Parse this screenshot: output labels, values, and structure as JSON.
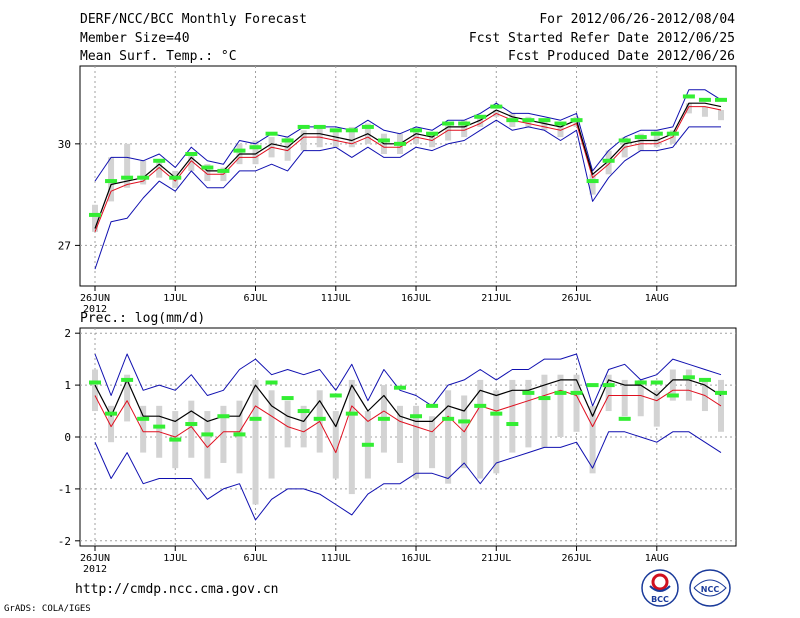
{
  "header": {
    "title": "DERF/NCC/BCC Monthly Forecast",
    "member_size": "Member Size=40",
    "variable": "Mean Surf. Temp.: °C",
    "period": "For 2012/06/26-2012/08/04",
    "fcst_started": "Fcst Started Refer Date 2012/06/25",
    "fcst_produced": "Fcst Produced Date 2012/06/26"
  },
  "footer": {
    "url": "http://cmdp.ncc.cma.gov.cn",
    "grads": "GrADS: COLA/IGES",
    "logo_left_text": "BCC",
    "logo_right_text": "NCC"
  },
  "colors": {
    "grid": "#a0a0a0",
    "ensemble_bar": "#d3d3d3",
    "max_min_line": "#1010b0",
    "mean_line": "#000000",
    "median_line": "#e01020",
    "green_marker": "#33ee33"
  },
  "chart_data": [
    {
      "type": "line",
      "title": "Mean Surf. Temp.: °C",
      "x": [
        1,
        2,
        3,
        4,
        5,
        6,
        7,
        8,
        9,
        10,
        11,
        12,
        13,
        14,
        15,
        16,
        17,
        18,
        19,
        20,
        21,
        22,
        23,
        24,
        25,
        26,
        27,
        28,
        29,
        30,
        31,
        32,
        33,
        34,
        35,
        36,
        37,
        38,
        39,
        40
      ],
      "xtick_positions": [
        1,
        6,
        11,
        16,
        21,
        26,
        31,
        36
      ],
      "xtick_labels": [
        "26JUN",
        "1JUL",
        "6JUL",
        "11JUL",
        "16JUL",
        "21JUL",
        "26JUL",
        "1AUG"
      ],
      "year_label": "2012",
      "ylim": [
        25.8,
        32.3
      ],
      "yticks": [
        27,
        30
      ],
      "ytick_labels": [
        "27",
        "30"
      ],
      "grid": true,
      "series": [
        {
          "name": "max",
          "values": [
            28.9,
            29.6,
            29.6,
            29.5,
            29.7,
            29.3,
            29.9,
            29.5,
            29.4,
            30.1,
            30.0,
            30.3,
            30.2,
            30.5,
            30.5,
            30.5,
            30.4,
            30.7,
            30.4,
            30.3,
            30.5,
            30.4,
            30.7,
            30.7,
            30.9,
            31.2,
            30.9,
            30.9,
            30.8,
            30.7,
            30.9,
            29.2,
            29.8,
            30.2,
            30.4,
            30.4,
            30.5,
            31.6,
            31.6,
            31.3
          ]
        },
        {
          "name": "min",
          "values": [
            26.3,
            27.7,
            27.8,
            28.4,
            28.9,
            28.6,
            29.2,
            28.7,
            28.7,
            29.2,
            29.2,
            29.4,
            29.2,
            29.8,
            29.8,
            29.9,
            29.6,
            29.9,
            29.6,
            29.6,
            29.9,
            29.8,
            30.0,
            30.1,
            30.4,
            30.7,
            30.4,
            30.5,
            30.4,
            30.1,
            30.4,
            28.3,
            29.0,
            29.5,
            29.8,
            29.8,
            29.9,
            30.5,
            30.5,
            30.5
          ]
        },
        {
          "name": "ens_top",
          "values": [
            28.2,
            29.6,
            30.0,
            29.5,
            29.5,
            29.2,
            29.7,
            29.4,
            29.3,
            30.0,
            30.1,
            30.2,
            30.2,
            30.4,
            30.5,
            30.4,
            30.5,
            30.6,
            30.3,
            30.3,
            30.4,
            30.3,
            30.6,
            30.7,
            30.8,
            31.0,
            30.9,
            30.8,
            30.7,
            30.6,
            30.8,
            29.1,
            29.8,
            30.2,
            30.3,
            30.4,
            30.4,
            31.2,
            31.1,
            31.0
          ]
        },
        {
          "name": "ens_bottom",
          "values": [
            27.4,
            28.3,
            28.7,
            28.8,
            29.0,
            28.7,
            29.2,
            28.9,
            28.9,
            29.4,
            29.4,
            29.6,
            29.5,
            29.8,
            29.9,
            29.9,
            29.9,
            30.0,
            29.7,
            29.7,
            30.0,
            29.9,
            30.1,
            30.2,
            30.5,
            30.8,
            30.5,
            30.5,
            30.4,
            30.2,
            30.5,
            28.5,
            29.1,
            29.6,
            29.8,
            29.9,
            30.0,
            30.9,
            30.8,
            30.7
          ]
        },
        {
          "name": "mean",
          "values": [
            27.5,
            28.8,
            28.9,
            29.0,
            29.4,
            29.0,
            29.6,
            29.2,
            29.2,
            29.7,
            29.7,
            30.0,
            29.9,
            30.3,
            30.3,
            30.2,
            30.1,
            30.3,
            30.0,
            30.0,
            30.3,
            30.2,
            30.5,
            30.5,
            30.7,
            31.0,
            30.8,
            30.7,
            30.6,
            30.5,
            30.7,
            29.1,
            29.5,
            30.0,
            30.1,
            30.1,
            30.3,
            31.2,
            31.2,
            31.1
          ]
        },
        {
          "name": "median",
          "values": [
            27.4,
            28.6,
            28.8,
            28.9,
            29.3,
            28.9,
            29.5,
            29.1,
            29.1,
            29.6,
            29.6,
            29.9,
            29.8,
            30.2,
            30.2,
            30.1,
            30.0,
            30.2,
            29.9,
            29.9,
            30.2,
            30.1,
            30.4,
            30.4,
            30.6,
            30.9,
            30.7,
            30.6,
            30.5,
            30.4,
            30.6,
            29.0,
            29.4,
            29.9,
            30.0,
            30.0,
            30.2,
            31.1,
            31.1,
            31.0
          ]
        },
        {
          "name": "green",
          "values": [
            27.9,
            28.9,
            29.0,
            29.0,
            29.5,
            29.0,
            29.7,
            29.3,
            29.2,
            29.8,
            29.9,
            30.3,
            30.1,
            30.5,
            30.5,
            30.4,
            30.4,
            30.5,
            30.1,
            30.0,
            30.4,
            30.3,
            30.6,
            30.6,
            30.8,
            31.1,
            30.7,
            30.7,
            30.7,
            30.6,
            30.7,
            28.9,
            29.5,
            30.1,
            30.2,
            30.3,
            30.3,
            31.4,
            31.3,
            31.3
          ]
        }
      ]
    },
    {
      "type": "line",
      "title": "Prec.: log(mm/d)",
      "x": [
        1,
        2,
        3,
        4,
        5,
        6,
        7,
        8,
        9,
        10,
        11,
        12,
        13,
        14,
        15,
        16,
        17,
        18,
        19,
        20,
        21,
        22,
        23,
        24,
        25,
        26,
        27,
        28,
        29,
        30,
        31,
        32,
        33,
        34,
        35,
        36,
        37,
        38,
        39,
        40
      ],
      "xtick_positions": [
        1,
        6,
        11,
        16,
        21,
        26,
        31,
        36
      ],
      "xtick_labels": [
        "26JUN",
        "1JUL",
        "6JUL",
        "11JUL",
        "16JUL",
        "21JUL",
        "26JUL",
        "1AUG"
      ],
      "year_label": "2012",
      "ylim": [
        -2.1,
        2.1
      ],
      "yticks": [
        -2,
        -1,
        0,
        1,
        2
      ],
      "ytick_labels": [
        "-2",
        "-1",
        "0",
        "1",
        "2"
      ],
      "grid": true,
      "series": [
        {
          "name": "max",
          "values": [
            1.6,
            0.8,
            1.6,
            0.9,
            1.0,
            0.9,
            1.2,
            0.8,
            0.9,
            1.3,
            1.5,
            1.2,
            1.3,
            1.2,
            1.3,
            0.9,
            1.4,
            0.7,
            1.3,
            0.9,
            0.8,
            0.6,
            1.0,
            1.1,
            1.3,
            1.1,
            1.3,
            1.3,
            1.5,
            1.5,
            1.6,
            0.6,
            1.3,
            1.4,
            1.1,
            1.2,
            1.5,
            1.4,
            1.3,
            1.2
          ]
        },
        {
          "name": "min",
          "values": [
            -0.1,
            -0.8,
            -0.3,
            -0.9,
            -0.8,
            -0.8,
            -0.8,
            -1.2,
            -1.0,
            -0.9,
            -1.6,
            -1.2,
            -1.0,
            -1.0,
            -1.1,
            -1.3,
            -1.5,
            -1.1,
            -0.9,
            -0.9,
            -0.7,
            -0.7,
            -0.8,
            -0.5,
            -0.9,
            -0.5,
            -0.4,
            -0.3,
            -0.2,
            -0.2,
            -0.1,
            -0.6,
            0.1,
            0.1,
            0.0,
            -0.1,
            0.1,
            0.1,
            -0.1,
            -0.3
          ]
        },
        {
          "name": "ens_top",
          "values": [
            1.3,
            0.6,
            1.2,
            0.6,
            0.6,
            0.5,
            0.7,
            0.5,
            0.6,
            0.7,
            1.1,
            0.9,
            0.7,
            0.6,
            0.9,
            0.5,
            1.1,
            0.5,
            1.0,
            0.6,
            0.6,
            0.4,
            0.9,
            0.8,
            1.1,
            0.9,
            1.1,
            1.1,
            1.2,
            1.2,
            1.2,
            0.6,
            1.2,
            1.1,
            1.1,
            0.9,
            1.3,
            1.3,
            1.1,
            1.1
          ]
        },
        {
          "name": "ens_bottom",
          "values": [
            0.5,
            -0.1,
            0.3,
            -0.3,
            -0.4,
            -0.6,
            -0.4,
            -0.8,
            -0.5,
            -0.7,
            -1.3,
            -0.8,
            -0.2,
            -0.2,
            -0.3,
            -0.8,
            -1.1,
            -0.8,
            -0.3,
            -0.5,
            -0.8,
            -0.6,
            -0.9,
            -0.6,
            -0.8,
            -0.7,
            -0.3,
            -0.2,
            -0.2,
            0.0,
            0.1,
            -0.7,
            0.5,
            0.4,
            0.4,
            0.2,
            0.7,
            0.7,
            0.5,
            0.1
          ]
        },
        {
          "name": "mean",
          "values": [
            1.0,
            0.4,
            1.1,
            0.4,
            0.4,
            0.3,
            0.5,
            0.3,
            0.4,
            0.4,
            1.0,
            0.6,
            0.4,
            0.3,
            0.7,
            0.2,
            1.0,
            0.5,
            0.8,
            0.4,
            0.3,
            0.3,
            0.6,
            0.5,
            0.9,
            0.8,
            0.9,
            0.9,
            1.0,
            1.1,
            1.1,
            0.4,
            1.1,
            1.0,
            1.0,
            0.8,
            1.1,
            1.1,
            1.0,
            0.8
          ]
        },
        {
          "name": "median",
          "values": [
            0.8,
            0.2,
            0.7,
            0.1,
            0.1,
            0.0,
            0.2,
            -0.2,
            0.1,
            0.1,
            0.6,
            0.4,
            0.2,
            0.1,
            0.3,
            -0.3,
            0.6,
            0.3,
            0.5,
            0.3,
            0.2,
            0.1,
            0.4,
            0.1,
            0.6,
            0.5,
            0.6,
            0.7,
            0.8,
            0.9,
            0.8,
            0.2,
            0.8,
            0.8,
            0.8,
            0.7,
            0.9,
            0.9,
            0.8,
            0.6
          ]
        },
        {
          "name": "green",
          "values": [
            1.05,
            0.45,
            1.1,
            0.35,
            0.2,
            -0.05,
            0.25,
            0.05,
            0.4,
            0.05,
            0.35,
            1.05,
            0.75,
            0.5,
            0.35,
            0.8,
            0.45,
            -0.15,
            0.35,
            0.95,
            0.4,
            0.6,
            0.35,
            0.3,
            0.6,
            0.45,
            0.25,
            0.85,
            0.75,
            0.85,
            0.85,
            1.0,
            1.0,
            0.35,
            1.05,
            1.05,
            0.8,
            1.15,
            1.1,
            0.85
          ]
        }
      ]
    }
  ]
}
